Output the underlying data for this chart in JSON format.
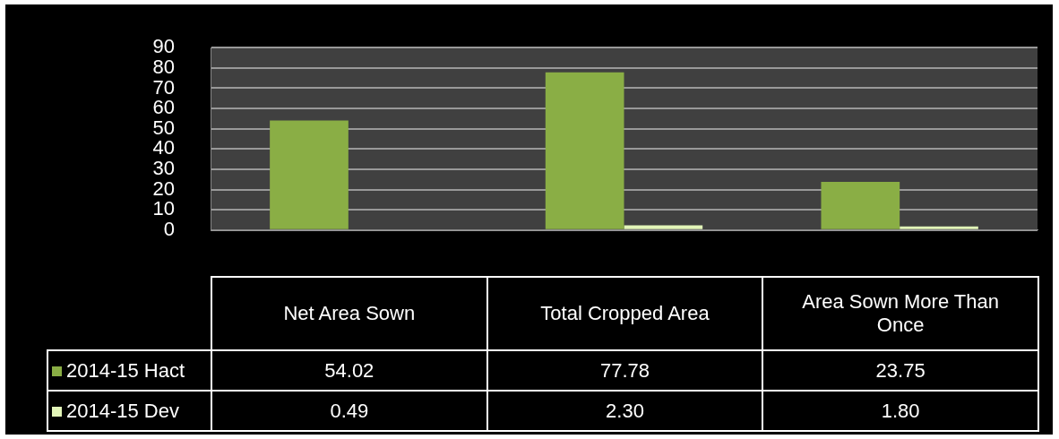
{
  "chart_data": {
    "type": "bar",
    "categories": [
      "Net Area Sown",
      "Total Cropped Area",
      "Area Sown More Than Once"
    ],
    "series": [
      {
        "name": "2014-15 Hact",
        "color": "#8aae45",
        "values": [
          54.02,
          77.78,
          23.75
        ],
        "value_labels": [
          "54.02",
          "77.78",
          "23.75"
        ]
      },
      {
        "name": "2014-15 Dev",
        "color": "#e2f5b8",
        "values": [
          0.49,
          2.3,
          1.8
        ],
        "value_labels": [
          "0.49",
          "2.30",
          "1.80"
        ]
      }
    ],
    "ylim": [
      0,
      90
    ],
    "yticks": [
      0,
      10,
      20,
      30,
      40,
      50,
      60,
      70,
      80,
      90
    ],
    "grid": "y",
    "legend": "bottom"
  }
}
